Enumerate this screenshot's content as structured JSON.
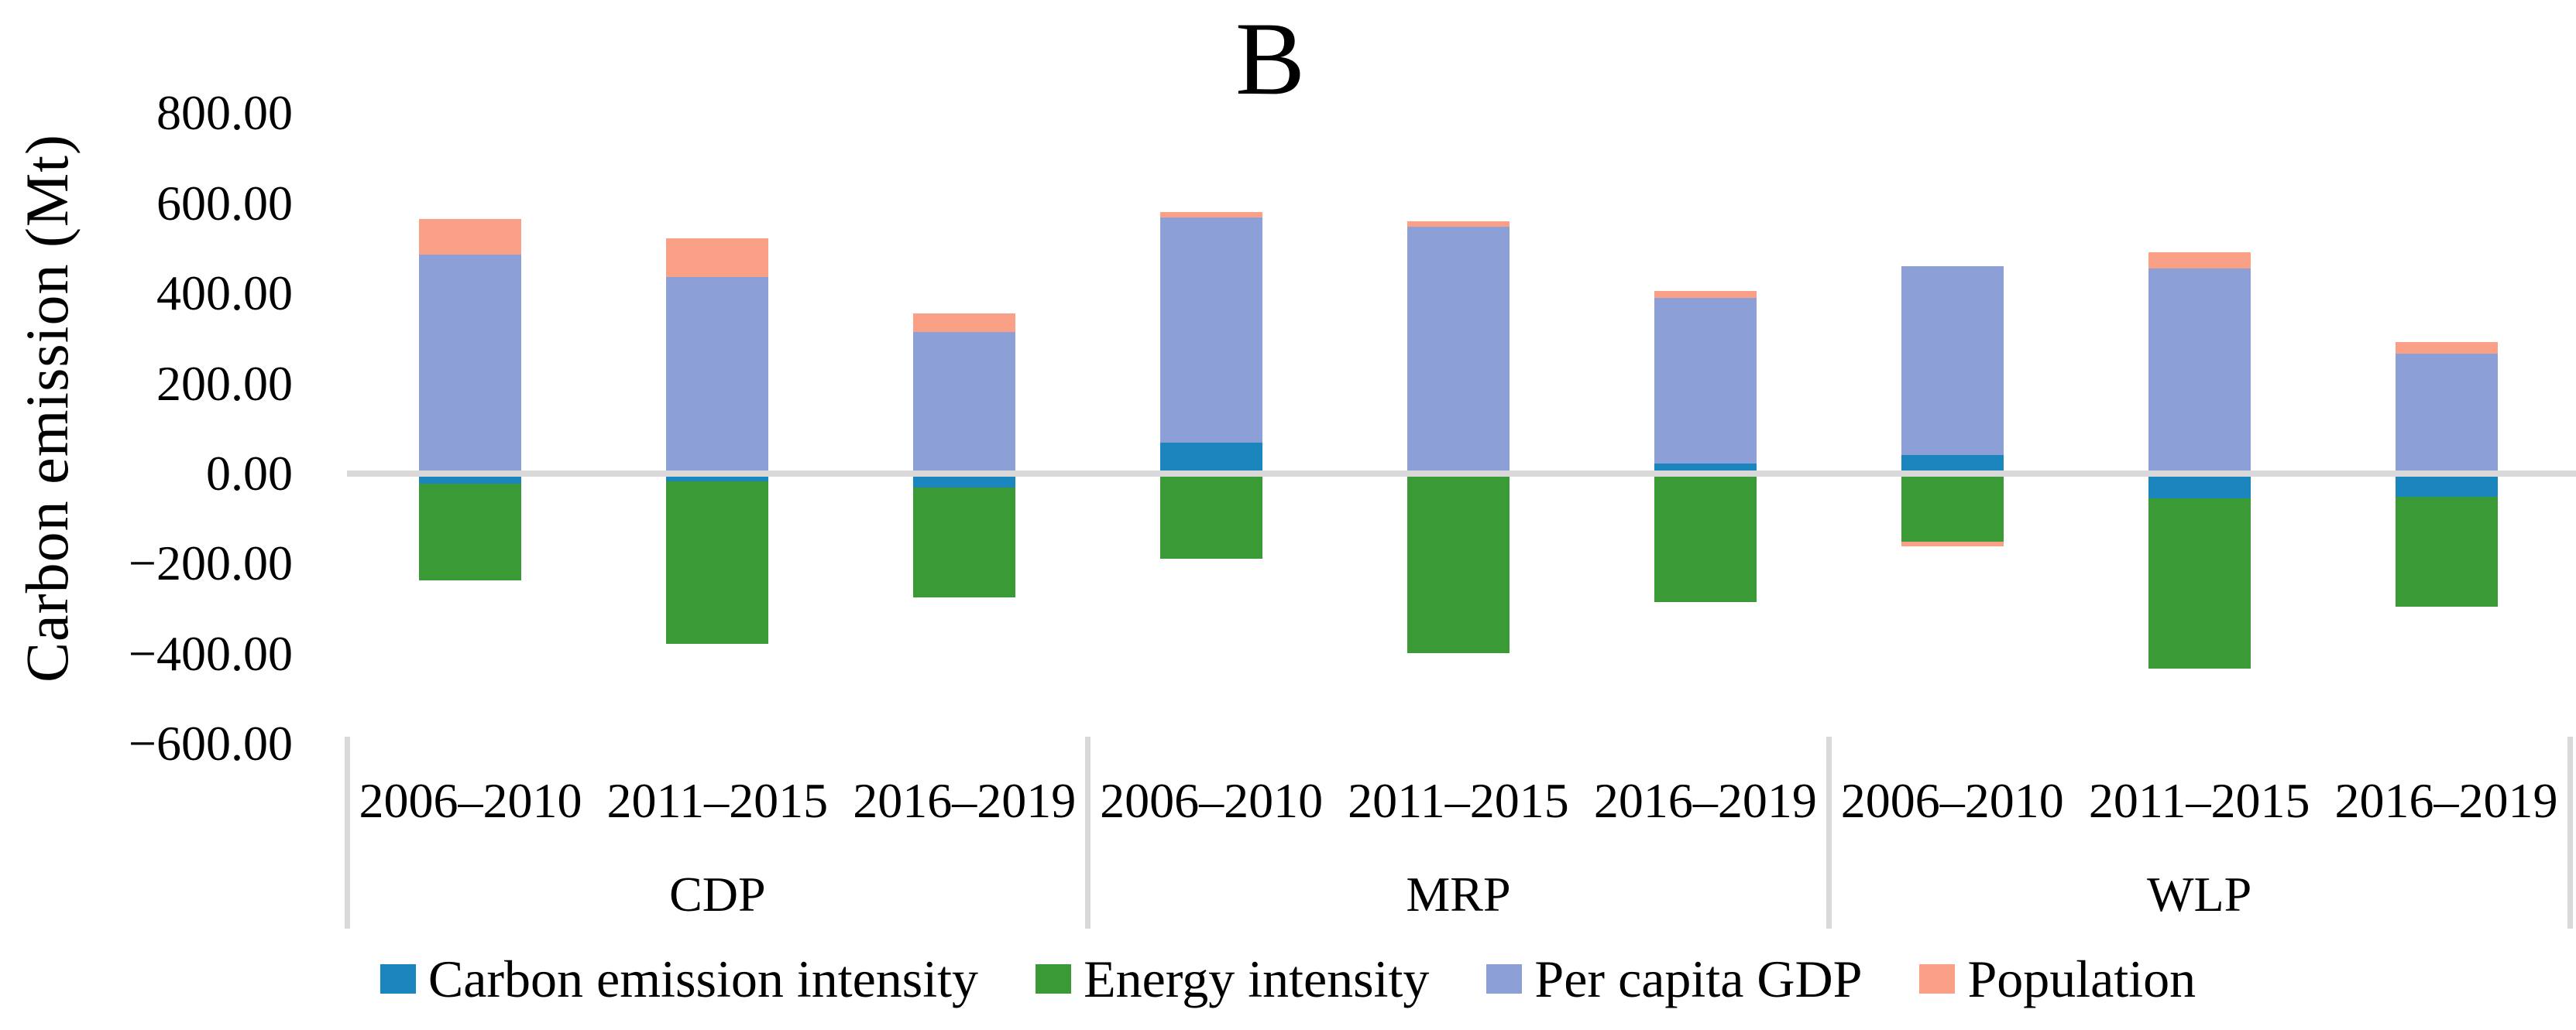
{
  "title": "B",
  "y_axis": {
    "title": "Carbon emission (Mt)",
    "ticks": [
      "800.00",
      "600.00",
      "400.00",
      "200.00",
      "0.00",
      "−200.00",
      "−400.00",
      "−600.00"
    ],
    "tick_values": [
      800,
      600,
      400,
      200,
      0,
      -200,
      -400,
      -600
    ]
  },
  "x_axis": {
    "group_labels": [
      "CDP",
      "MRP",
      "WLP"
    ],
    "period_labels": [
      "2006–2010",
      "2011–2015",
      "2016–2019"
    ]
  },
  "colors": {
    "carbon_emission_intensity": "#1B86BE",
    "energy_intensity": "#3A9A35",
    "per_capita_gdp": "#8CA0D7",
    "population": "#FAA087",
    "axis_line": "#D9D9D9",
    "text": "#000000"
  },
  "chart_data": {
    "type": "bar",
    "stacked": true,
    "title": "B",
    "xlabel": "",
    "ylabel": "Carbon emission (Mt)",
    "ylim": [
      -600,
      800
    ],
    "grid": false,
    "legend_position": "bottom",
    "group_labels": [
      "CDP",
      "MRP",
      "WLP"
    ],
    "categories": [
      "CDP 2006–2010",
      "CDP 2011–2015",
      "CDP 2016–2019",
      "MRP 2006–2010",
      "MRP 2011–2015",
      "MRP 2016–2019",
      "WLP 2006–2010",
      "WLP 2011–2015",
      "WLP 2016–2019"
    ],
    "series": [
      {
        "name": "Carbon emission intensity",
        "color": "#1B86BE",
        "values": [
          -22,
          -17,
          -31,
          69,
          0,
          22,
          41,
          -55,
          -52
        ]
      },
      {
        "name": "Energy intensity",
        "color": "#3A9A35",
        "values": [
          -215,
          -361,
          -244,
          -189,
          -399,
          -285,
          -151,
          -378,
          -243
        ]
      },
      {
        "name": "Per capita GDP",
        "color": "#8CA0D7",
        "values": [
          486,
          436,
          314,
          500,
          548,
          368,
          419,
          455,
          266
        ]
      },
      {
        "name": "Population",
        "color": "#FAA087",
        "values": [
          79,
          87,
          42,
          12,
          12,
          15,
          -11,
          36,
          26
        ]
      }
    ]
  }
}
